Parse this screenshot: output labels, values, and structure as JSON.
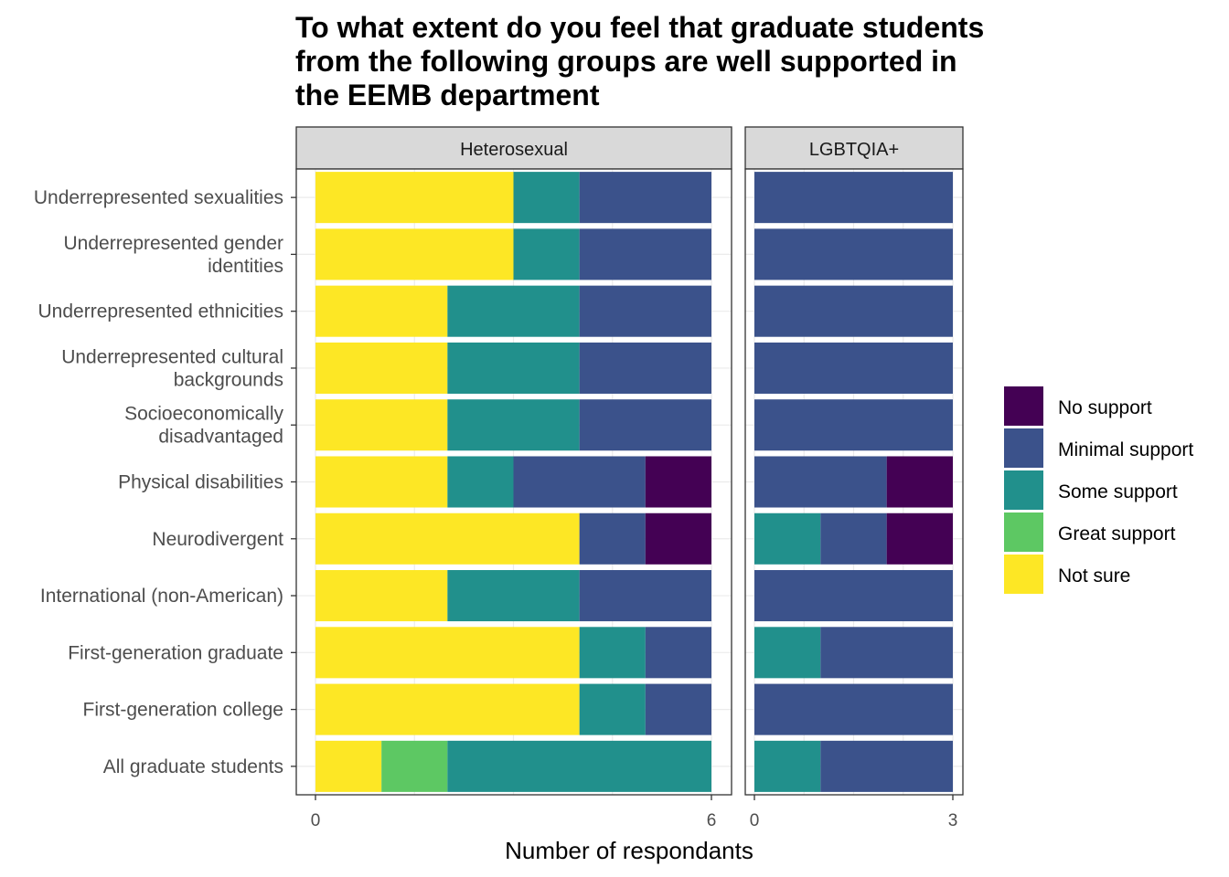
{
  "chart_data": {
    "type": "bar",
    "orientation": "horizontal",
    "stacked": true,
    "title": "To what extent do you feel that graduate students from the following groups are well supported in the EEMB department",
    "title_lines": [
      "To what extent do you feel that graduate students",
      "from the following groups are well supported in",
      "the EEMB department"
    ],
    "xlabel": "Number of respondants",
    "ylabel": "",
    "grid": true,
    "legend_position": "right",
    "categories": [
      "Underrepresented sexualities",
      "Underrepresented gender identities",
      "Underrepresented ethnicities",
      "Underrepresented cultural backgrounds",
      "Socioeconomically disadvantaged",
      "Physical disabilities",
      "Neurodivergent",
      "International (non-American)",
      "First-generation graduate",
      "First-generation college",
      "All graduate students"
    ],
    "category_label_lines": [
      [
        "Underrepresented sexualities"
      ],
      [
        "Underrepresented gender",
        "identities"
      ],
      [
        "Underrepresented ethnicities"
      ],
      [
        "Underrepresented cultural",
        "backgrounds"
      ],
      [
        "Socioeconomically",
        "disadvantaged"
      ],
      [
        "Physical disabilities"
      ],
      [
        "Neurodivergent"
      ],
      [
        "International (non-American)"
      ],
      [
        "First-generation graduate"
      ],
      [
        "First-generation college"
      ],
      [
        "All graduate students"
      ]
    ],
    "stack_order": [
      "Not sure",
      "Great support",
      "Some support",
      "Minimal support",
      "No support"
    ],
    "legend": [
      {
        "name": "No support",
        "color": "#440154"
      },
      {
        "name": "Minimal support",
        "color": "#3b528b"
      },
      {
        "name": "Some support",
        "color": "#21908c"
      },
      {
        "name": "Great support",
        "color": "#5dc863"
      },
      {
        "name": "Not sure",
        "color": "#fde725"
      }
    ],
    "panels": [
      {
        "name": "Heterosexual",
        "xlim": [
          0,
          6
        ],
        "xticks": [
          0,
          6
        ],
        "series": [
          {
            "name": "Not sure",
            "values": [
              3,
              3,
              2,
              2,
              2,
              2,
              4,
              2,
              4,
              4,
              1
            ]
          },
          {
            "name": "Great support",
            "values": [
              0,
              0,
              0,
              0,
              0,
              0,
              0,
              0,
              0,
              0,
              1
            ]
          },
          {
            "name": "Some support",
            "values": [
              1,
              1,
              2,
              2,
              2,
              1,
              0,
              2,
              1,
              1,
              4
            ]
          },
          {
            "name": "Minimal support",
            "values": [
              2,
              2,
              2,
              2,
              2,
              2,
              1,
              2,
              1,
              1,
              0
            ]
          },
          {
            "name": "No support",
            "values": [
              0,
              0,
              0,
              0,
              0,
              1,
              1,
              0,
              0,
              0,
              0
            ]
          }
        ]
      },
      {
        "name": "LGBTQIA+",
        "xlim": [
          0,
          3
        ],
        "xticks": [
          0,
          3
        ],
        "series": [
          {
            "name": "Not sure",
            "values": [
              0,
              0,
              0,
              0,
              0,
              0,
              0,
              0,
              0,
              0,
              0
            ]
          },
          {
            "name": "Great support",
            "values": [
              0,
              0,
              0,
              0,
              0,
              0,
              0,
              0,
              0,
              0,
              0
            ]
          },
          {
            "name": "Some support",
            "values": [
              0,
              0,
              0,
              0,
              0,
              0,
              1,
              0,
              1,
              0,
              1
            ]
          },
          {
            "name": "Minimal support",
            "values": [
              3,
              3,
              3,
              3,
              3,
              2,
              1,
              3,
              2,
              3,
              2
            ]
          },
          {
            "name": "No support",
            "values": [
              0,
              0,
              0,
              0,
              0,
              1,
              1,
              0,
              0,
              0,
              0
            ]
          }
        ]
      }
    ]
  }
}
